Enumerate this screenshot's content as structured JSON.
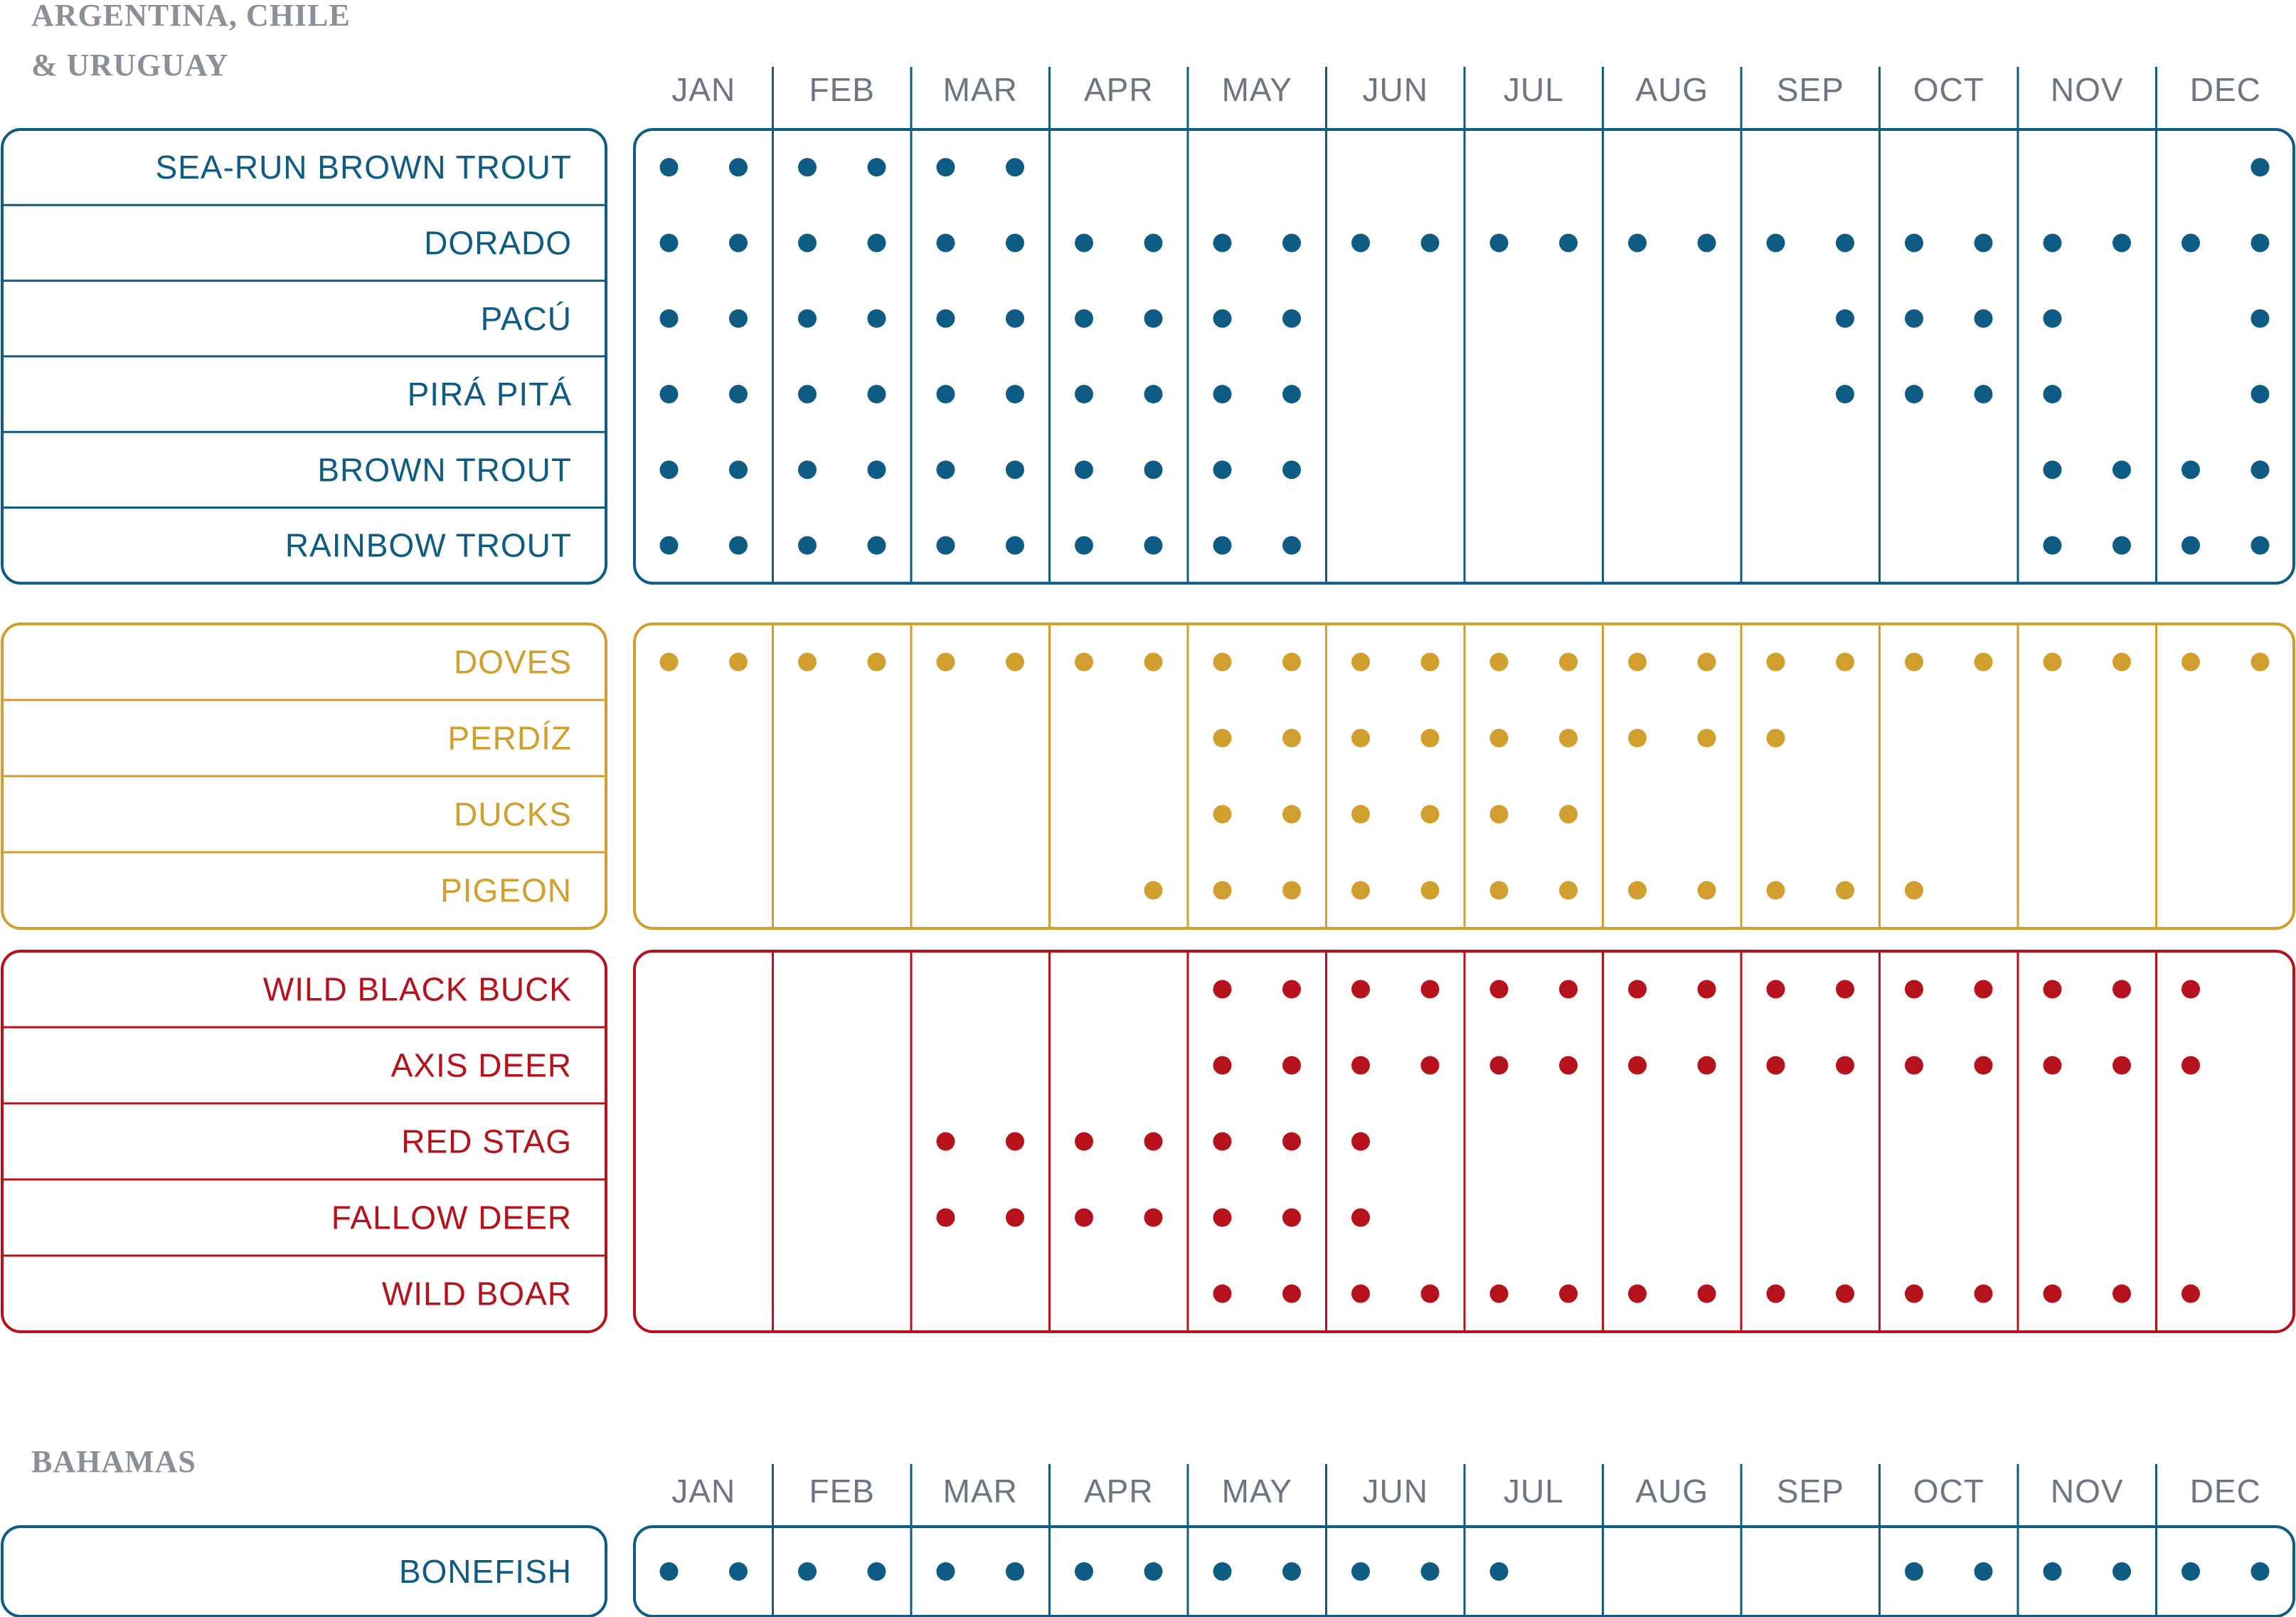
{
  "colors": {
    "blue": "#0e5c84",
    "gold": "#d19f2e",
    "red": "#b5121b",
    "month_text": "#6f7580",
    "region_text": "#8a8f98"
  },
  "chart_data": [
    {
      "type": "table",
      "region_lines": [
        "ARGENTINA, CHILE",
        "& URUGUAY"
      ],
      "months": [
        "JAN",
        "FEB",
        "MAR",
        "APR",
        "MAY",
        "JUN",
        "JUL",
        "AUG",
        "SEP",
        "OCT",
        "NOV",
        "DEC"
      ],
      "groups": [
        {
          "color": "blue",
          "rows": [
            {
              "label": "SEA-RUN BROWN TROUT",
              "periods": [
                1,
                1,
                1,
                1,
                1,
                1,
                0,
                0,
                0,
                0,
                0,
                0,
                0,
                0,
                0,
                0,
                0,
                0,
                0,
                0,
                0,
                0,
                0,
                1
              ]
            },
            {
              "label": "DORADO",
              "periods": [
                1,
                1,
                1,
                1,
                1,
                1,
                1,
                1,
                1,
                1,
                1,
                1,
                1,
                1,
                1,
                1,
                1,
                1,
                1,
                1,
                1,
                1,
                1,
                1
              ]
            },
            {
              "label": "PACÚ",
              "periods": [
                1,
                1,
                1,
                1,
                1,
                1,
                1,
                1,
                1,
                1,
                0,
                0,
                0,
                0,
                0,
                0,
                0,
                1,
                1,
                1,
                1,
                0,
                0,
                1
              ]
            },
            {
              "label": "PIRÁ PITÁ",
              "periods": [
                1,
                1,
                1,
                1,
                1,
                1,
                1,
                1,
                1,
                1,
                0,
                0,
                0,
                0,
                0,
                0,
                0,
                1,
                1,
                1,
                1,
                0,
                0,
                1
              ]
            },
            {
              "label": "BROWN TROUT",
              "periods": [
                1,
                1,
                1,
                1,
                1,
                1,
                1,
                1,
                1,
                1,
                0,
                0,
                0,
                0,
                0,
                0,
                0,
                0,
                0,
                0,
                1,
                1,
                1,
                1
              ]
            },
            {
              "label": "RAINBOW TROUT",
              "periods": [
                1,
                1,
                1,
                1,
                1,
                1,
                1,
                1,
                1,
                1,
                0,
                0,
                0,
                0,
                0,
                0,
                0,
                0,
                0,
                0,
                1,
                1,
                1,
                1
              ]
            }
          ]
        },
        {
          "color": "gold",
          "rows": [
            {
              "label": "DOVES",
              "periods": [
                1,
                1,
                1,
                1,
                1,
                1,
                1,
                1,
                1,
                1,
                1,
                1,
                1,
                1,
                1,
                1,
                1,
                1,
                1,
                1,
                1,
                1,
                1,
                1
              ]
            },
            {
              "label": "PERDÍZ",
              "periods": [
                0,
                0,
                0,
                0,
                0,
                0,
                0,
                0,
                1,
                1,
                1,
                1,
                1,
                1,
                1,
                1,
                1,
                0,
                0,
                0,
                0,
                0,
                0,
                0
              ]
            },
            {
              "label": "DUCKS",
              "periods": [
                0,
                0,
                0,
                0,
                0,
                0,
                0,
                0,
                1,
                1,
                1,
                1,
                1,
                1,
                0,
                0,
                0,
                0,
                0,
                0,
                0,
                0,
                0,
                0
              ]
            },
            {
              "label": "PIGEON",
              "periods": [
                0,
                0,
                0,
                0,
                0,
                0,
                0,
                1,
                1,
                1,
                1,
                1,
                1,
                1,
                1,
                1,
                1,
                1,
                1,
                0,
                0,
                0,
                0,
                0
              ]
            }
          ]
        },
        {
          "color": "red",
          "rows": [
            {
              "label": "WILD BLACK BUCK",
              "periods": [
                0,
                0,
                0,
                0,
                0,
                0,
                0,
                0,
                1,
                1,
                1,
                1,
                1,
                1,
                1,
                1,
                1,
                1,
                1,
                1,
                1,
                1,
                1,
                0
              ]
            },
            {
              "label": "AXIS DEER",
              "periods": [
                0,
                0,
                0,
                0,
                0,
                0,
                0,
                0,
                1,
                1,
                1,
                1,
                1,
                1,
                1,
                1,
                1,
                1,
                1,
                1,
                1,
                1,
                1,
                0
              ]
            },
            {
              "label": "RED STAG",
              "periods": [
                0,
                0,
                0,
                0,
                1,
                1,
                1,
                1,
                1,
                1,
                1,
                0,
                0,
                0,
                0,
                0,
                0,
                0,
                0,
                0,
                0,
                0,
                0,
                0
              ]
            },
            {
              "label": "FALLOW DEER",
              "periods": [
                0,
                0,
                0,
                0,
                1,
                1,
                1,
                1,
                1,
                1,
                1,
                0,
                0,
                0,
                0,
                0,
                0,
                0,
                0,
                0,
                0,
                0,
                0,
                0
              ]
            },
            {
              "label": "WILD BOAR",
              "periods": [
                0,
                0,
                0,
                0,
                0,
                0,
                0,
                0,
                1,
                1,
                1,
                1,
                1,
                1,
                1,
                1,
                1,
                1,
                1,
                1,
                1,
                1,
                1,
                0
              ]
            }
          ]
        }
      ]
    },
    {
      "type": "table",
      "region_lines": [
        "BAHAMAS"
      ],
      "months": [
        "JAN",
        "FEB",
        "MAR",
        "APR",
        "MAY",
        "JUN",
        "JUL",
        "AUG",
        "SEP",
        "OCT",
        "NOV",
        "DEC"
      ],
      "groups": [
        {
          "color": "blue",
          "rows": [
            {
              "label": "BONEFISH",
              "periods": [
                1,
                1,
                1,
                1,
                1,
                1,
                1,
                1,
                1,
                1,
                1,
                1,
                1,
                0,
                0,
                0,
                0,
                0,
                1,
                1,
                1,
                1,
                1,
                1
              ]
            }
          ]
        }
      ]
    }
  ]
}
